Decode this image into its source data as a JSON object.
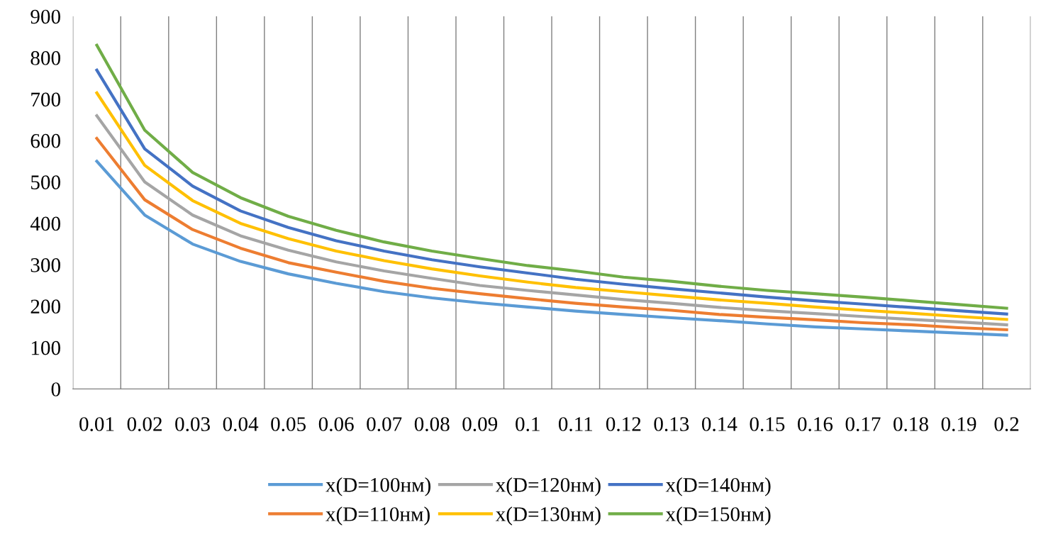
{
  "chart_data": {
    "type": "line",
    "categories": [
      "0.01",
      "0.02",
      "0.03",
      "0.04",
      "0.05",
      "0.06",
      "0.07",
      "0.08",
      "0.09",
      "0.1",
      "0.11",
      "0.12",
      "0.13",
      "0.14",
      "0.15",
      "0.16",
      "0.17",
      "0.18",
      "0.19",
      "0.2"
    ],
    "series": [
      {
        "name": "x(D=100нм)",
        "color": "#5b9bd5",
        "values": [
          550,
          420,
          350,
          308,
          278,
          255,
          235,
          220,
          208,
          198,
          188,
          180,
          172,
          165,
          157,
          150,
          145,
          140,
          135,
          130
        ]
      },
      {
        "name": "x(D=110нм)",
        "color": "#ed7d31",
        "values": [
          605,
          457,
          385,
          340,
          305,
          282,
          260,
          243,
          230,
          218,
          207,
          198,
          190,
          180,
          173,
          167,
          160,
          155,
          148,
          143
        ]
      },
      {
        "name": "x(D=120нм)",
        "color": "#a5a5a5",
        "values": [
          660,
          500,
          420,
          370,
          335,
          307,
          285,
          267,
          250,
          238,
          227,
          216,
          207,
          197,
          189,
          182,
          175,
          168,
          162,
          155
        ]
      },
      {
        "name": "x(D=130нм)",
        "color": "#ffc000",
        "values": [
          715,
          540,
          455,
          400,
          363,
          333,
          310,
          290,
          273,
          258,
          245,
          235,
          225,
          215,
          207,
          198,
          190,
          183,
          175,
          168
        ]
      },
      {
        "name": "x(D=140нм)",
        "color": "#4472c4",
        "values": [
          770,
          580,
          490,
          430,
          390,
          358,
          333,
          312,
          295,
          280,
          265,
          253,
          242,
          232,
          222,
          213,
          205,
          197,
          189,
          181
        ]
      },
      {
        "name": "x(D=150нм)",
        "color": "#70ad47",
        "values": [
          830,
          625,
          523,
          462,
          417,
          383,
          355,
          333,
          315,
          298,
          285,
          270,
          260,
          248,
          238,
          230,
          222,
          213,
          204,
          195
        ]
      }
    ],
    "ylim": [
      0,
      900
    ],
    "yticks": [
      0,
      100,
      200,
      300,
      400,
      500,
      600,
      700,
      800,
      900
    ],
    "grid": "x",
    "legend": "bottom",
    "marker": "none",
    "line_style": "solid"
  }
}
